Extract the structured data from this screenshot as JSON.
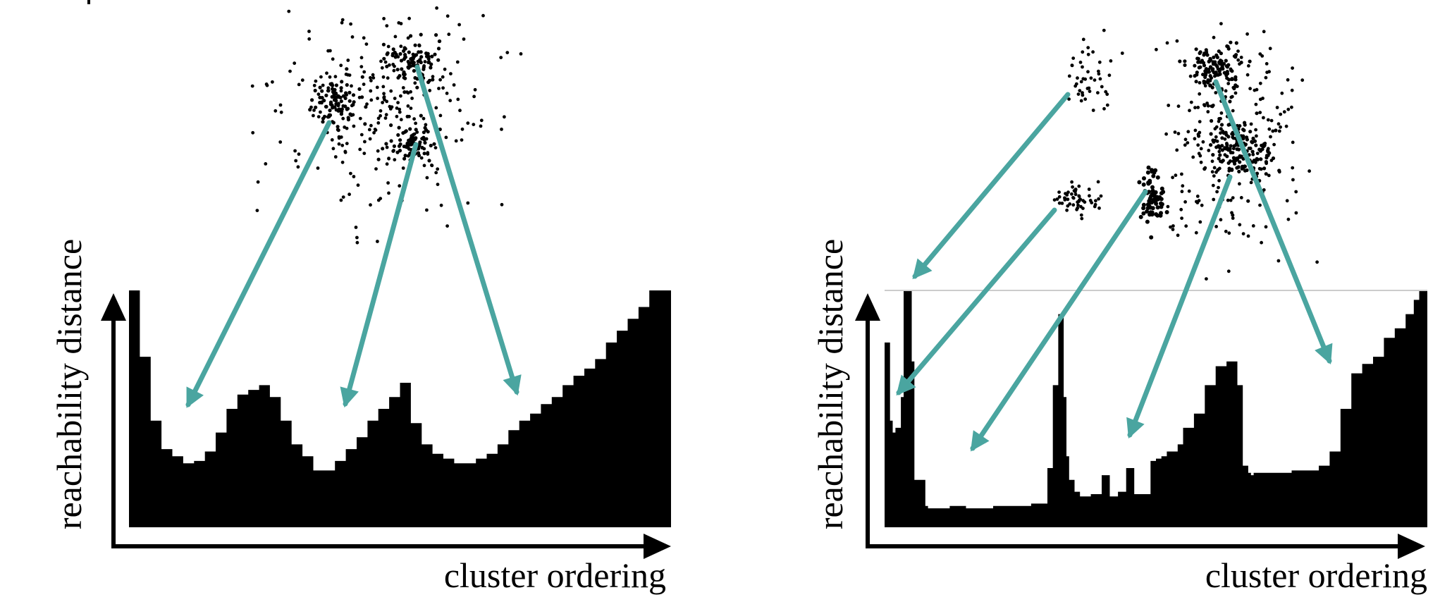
{
  "figure": {
    "colors": {
      "arrow": "#4aa5a0",
      "fill": "#000000",
      "background": "#ffffff"
    }
  },
  "chart_data": [
    {
      "type": "area",
      "panel": "left",
      "xlabel": "cluster ordering",
      "ylabel": "reachability distance",
      "ylim": [
        0,
        1
      ],
      "cluster_count": 3,
      "x": [
        0,
        0.02,
        0.04,
        0.06,
        0.08,
        0.1,
        0.12,
        0.14,
        0.16,
        0.18,
        0.2,
        0.22,
        0.24,
        0.26,
        0.28,
        0.3,
        0.32,
        0.34,
        0.36,
        0.38,
        0.4,
        0.42,
        0.44,
        0.46,
        0.48,
        0.5,
        0.52,
        0.54,
        0.56,
        0.58,
        0.6,
        0.62,
        0.64,
        0.66,
        0.68,
        0.7,
        0.72,
        0.74,
        0.76,
        0.78,
        0.8,
        0.82,
        0.84,
        0.86,
        0.88,
        0.9,
        0.92,
        0.94,
        0.96,
        0.98,
        1.0
      ],
      "values": [
        1.0,
        0.72,
        0.45,
        0.33,
        0.3,
        0.27,
        0.28,
        0.32,
        0.4,
        0.5,
        0.56,
        0.58,
        0.6,
        0.55,
        0.45,
        0.35,
        0.3,
        0.24,
        0.24,
        0.28,
        0.33,
        0.38,
        0.45,
        0.5,
        0.55,
        0.61,
        0.44,
        0.35,
        0.31,
        0.29,
        0.27,
        0.27,
        0.29,
        0.31,
        0.35,
        0.41,
        0.45,
        0.48,
        0.52,
        0.55,
        0.6,
        0.64,
        0.67,
        0.71,
        0.78,
        0.83,
        0.88,
        0.93,
        1.0,
        1.0,
        1.0
      ]
    },
    {
      "type": "area",
      "panel": "right",
      "xlabel": "cluster ordering",
      "ylabel": "reachability distance",
      "ylim": [
        0,
        1
      ],
      "cluster_count": 6,
      "x": [
        0,
        0.01,
        0.015,
        0.02,
        0.03,
        0.035,
        0.045,
        0.05,
        0.055,
        0.075,
        0.08,
        0.12,
        0.15,
        0.17,
        0.2,
        0.23,
        0.27,
        0.3,
        0.31,
        0.32,
        0.33,
        0.335,
        0.34,
        0.35,
        0.36,
        0.38,
        0.4,
        0.415,
        0.43,
        0.445,
        0.46,
        0.49,
        0.5,
        0.51,
        0.52,
        0.54,
        0.55,
        0.57,
        0.59,
        0.61,
        0.63,
        0.65,
        0.66,
        0.67,
        0.675,
        0.68,
        0.7,
        0.75,
        0.8,
        0.82,
        0.84,
        0.86,
        0.88,
        0.9,
        0.92,
        0.94,
        0.96,
        0.975,
        0.985,
        1.0
      ],
      "values": [
        0.78,
        0.45,
        0.4,
        0.42,
        0.55,
        1.0,
        1.0,
        0.7,
        0.2,
        0.09,
        0.08,
        0.09,
        0.08,
        0.08,
        0.09,
        0.09,
        0.1,
        0.25,
        0.6,
        0.9,
        0.55,
        0.3,
        0.2,
        0.15,
        0.13,
        0.14,
        0.22,
        0.13,
        0.15,
        0.25,
        0.14,
        0.28,
        0.29,
        0.3,
        0.32,
        0.35,
        0.42,
        0.48,
        0.6,
        0.68,
        0.7,
        0.6,
        0.26,
        0.23,
        0.22,
        0.23,
        0.23,
        0.24,
        0.26,
        0.32,
        0.5,
        0.65,
        0.69,
        0.72,
        0.8,
        0.84,
        0.9,
        0.96,
        1.0,
        1.0
      ]
    }
  ]
}
